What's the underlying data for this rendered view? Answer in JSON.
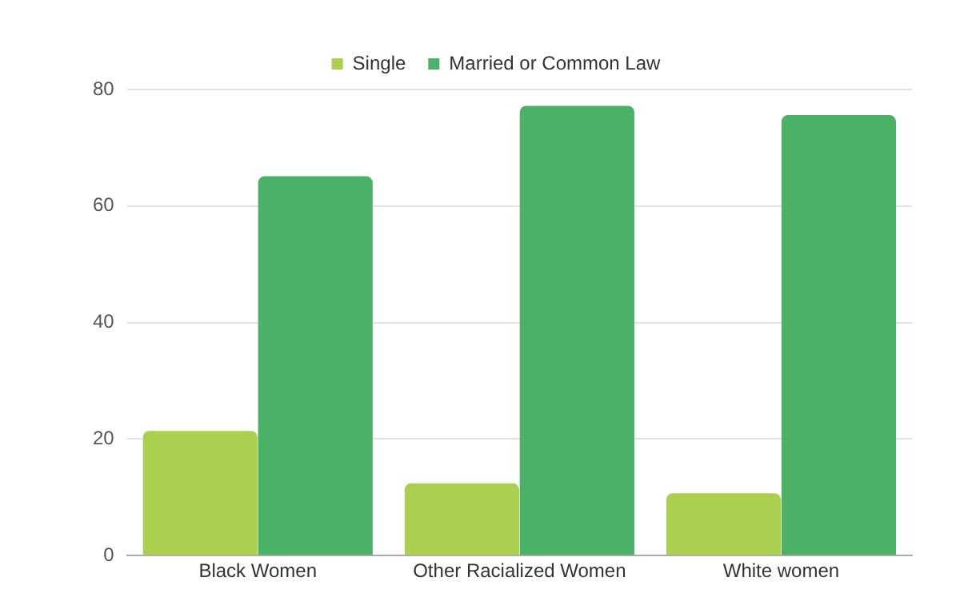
{
  "chart_data": {
    "type": "bar",
    "categories": [
      "Black Women",
      "Other Racialized Women",
      "White women"
    ],
    "series": [
      {
        "name": "Single",
        "color": "#abcf4f",
        "values": [
          21.4,
          12.4,
          10.7
        ]
      },
      {
        "name": "Married or Common Law",
        "color": "#4bb166",
        "values": [
          65.1,
          77.2,
          75.6
        ]
      }
    ],
    "ylim": [
      0,
      80
    ],
    "yticks": [
      0,
      20,
      40,
      60,
      80
    ],
    "grid": "y",
    "legend": "top"
  }
}
